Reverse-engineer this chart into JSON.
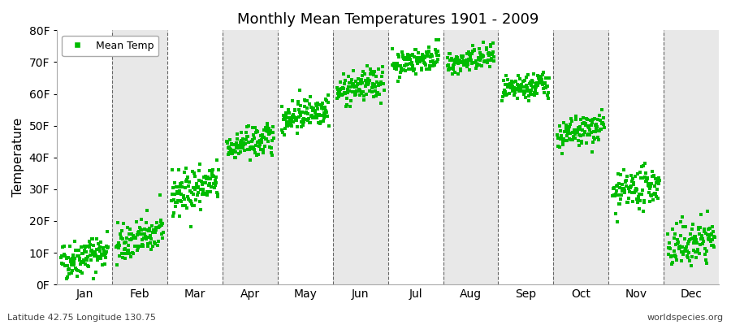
{
  "title": "Monthly Mean Temperatures 1901 - 2009",
  "ylabel": "Temperature",
  "bottom_left": "Latitude 42.75 Longitude 130.75",
  "bottom_right": "worldspecies.org",
  "legend_label": "Mean Temp",
  "dot_color": "#00bb00",
  "background_color": "#ffffff",
  "plot_bg_color": "#ffffff",
  "band_color_odd": "#ffffff",
  "band_color_even": "#e8e8e8",
  "ylim": [
    0,
    80
  ],
  "ytick_labels": [
    "0F",
    "10F",
    "20F",
    "30F",
    "40F",
    "50F",
    "60F",
    "70F",
    "80F"
  ],
  "ytick_values": [
    0,
    10,
    20,
    30,
    40,
    50,
    60,
    70,
    80
  ],
  "months": [
    "Jan",
    "Feb",
    "Mar",
    "Apr",
    "May",
    "Jun",
    "Jul",
    "Aug",
    "Sep",
    "Oct",
    "Nov",
    "Dec"
  ],
  "mean_temps_F_start": [
    7.0,
    12.0,
    28.0,
    43.0,
    52.0,
    60.5,
    69.0,
    69.0,
    60.5,
    46.0,
    28.0,
    11.0
  ],
  "mean_temps_F_end": [
    11.0,
    17.0,
    32.0,
    46.0,
    56.0,
    64.0,
    72.0,
    72.0,
    63.5,
    50.0,
    32.0,
    15.0
  ],
  "spread": [
    3.0,
    3.0,
    3.5,
    2.5,
    2.5,
    2.5,
    2.0,
    2.0,
    2.0,
    2.5,
    3.0,
    3.5
  ],
  "n_years": 109,
  "seed": 42,
  "marker_size": 3,
  "dashed_line_color": "#666666"
}
